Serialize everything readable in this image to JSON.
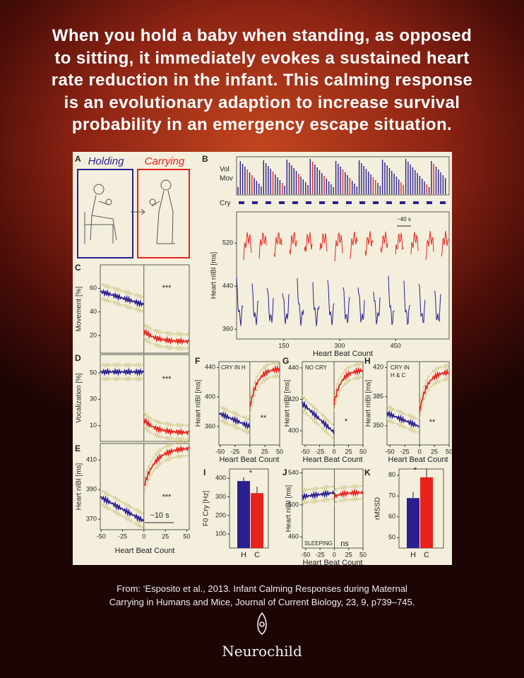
{
  "headline": [
    "When you hold a baby when standing, as opposed",
    "to sitting, it immediately evokes a sustained heart",
    "rate reduction in the infant. This calming response",
    "is an evolutionary adaption to increase survival",
    "probability in an emergency escape situation."
  ],
  "figure": {
    "panels": [
      {
        "letter": "A",
        "labels": [
          "Holding",
          "Carrying"
        ]
      },
      {
        "letter": "B",
        "rows": [
          "Vol",
          "Mov",
          "Cry"
        ],
        "note": "~40 s",
        "ylabel": "Heart nIBI [ms]",
        "yticks": [
          360,
          440,
          520
        ],
        "ylim": [
          342,
          578
        ],
        "xticks": [
          150,
          300,
          450
        ],
        "xlim": [
          23,
          594
        ],
        "xlabel": "Heart Beat Count"
      },
      {
        "letter": "C",
        "ylabel": "Movement [%]",
        "yticks": [
          20,
          40,
          60
        ],
        "ylim": [
          5,
          80
        ],
        "notes": [
          "***"
        ]
      },
      {
        "letter": "D",
        "ylabel": "Vocalization [%]",
        "yticks": [
          10,
          30,
          50
        ],
        "ylim": [
          -2,
          64
        ],
        "notes": [
          "***"
        ]
      },
      {
        "letter": "E",
        "ylabel": "Heart nIBI [ms]",
        "yticks": [
          370,
          390,
          410
        ],
        "ylim": [
          363,
          421
        ],
        "xticks": [
          -50,
          -25,
          0,
          25,
          50
        ],
        "xlim": [
          -51,
          53
        ],
        "xlabel": "Heart Beat Count",
        "notes": [
          "***",
          "~10 s"
        ]
      },
      {
        "letter": "F",
        "ylabel": "Heart nIBI [ms]",
        "yticks": [
          360,
          400,
          440
        ],
        "ylim": [
          335,
          448
        ],
        "xticks": [
          -50,
          -25,
          0,
          25,
          50
        ],
        "xlim": [
          -52,
          50
        ],
        "xlabel": "Heart Beat Count",
        "notes": [
          "CRY IN H",
          "**"
        ]
      },
      {
        "letter": "G",
        "ylabel": "Heart nIBI [ms]",
        "yticks": [
          400,
          420,
          440
        ],
        "ylim": [
          391,
          444
        ],
        "xticks": [
          -50,
          -25,
          0,
          25,
          50
        ],
        "xlim": [
          -55,
          50
        ],
        "xlabel": "Heart Beat Count",
        "notes": [
          "NO CRY",
          "*"
        ]
      },
      {
        "letter": "H",
        "ylabel": "Heart nIBI [ms]",
        "yticks": [
          350,
          385,
          420
        ],
        "ylim": [
          327,
          427
        ],
        "xticks": [
          -50,
          -25,
          0,
          25,
          50
        ],
        "xlim": [
          -55,
          50
        ],
        "xlabel": "Heart Beat Count",
        "notes": [
          "CRY IN",
          "H & C",
          "**"
        ]
      },
      {
        "letter": "I",
        "ylabel": "F0 Cry [Hz]",
        "yticks": [
          100,
          200,
          300,
          400
        ],
        "ylim": [
          25,
          450
        ],
        "categories": [
          "H",
          "C"
        ],
        "values": [
          385,
          320
        ],
        "errors": [
          20,
          35
        ],
        "colors": [
          "#2a1f8f",
          "#e8231c"
        ],
        "notes": [
          "*"
        ]
      },
      {
        "letter": "J",
        "ylabel": "Heart nIBI [ms]",
        "yticks": [
          460,
          500,
          540
        ],
        "ylim": [
          446,
          545
        ],
        "xticks": [
          -50,
          -25,
          0,
          25,
          50
        ],
        "xlim": [
          -56,
          50
        ],
        "xlabel": "Heart Beat Count",
        "notes": [
          "SLEEPING",
          "ns"
        ]
      },
      {
        "letter": "K",
        "ylabel": "rMSSD",
        "yticks": [
          50,
          60,
          70,
          80
        ],
        "ylim": [
          45,
          83
        ],
        "categories": [
          "H",
          "C"
        ],
        "values": [
          69,
          79
        ],
        "errors": [
          3,
          4
        ],
        "colors": [
          "#2a1f8f",
          "#e8231c"
        ],
        "notes": [
          "*"
        ]
      }
    ]
  },
  "citation": [
    "From: ‘Esposito et al., 2013. Infant Calming Responses during Maternal",
    "Carrying in Humans and Mice, Journal of Current Biology, 23, 9, p739–745."
  ],
  "brand": "Neurochild"
}
